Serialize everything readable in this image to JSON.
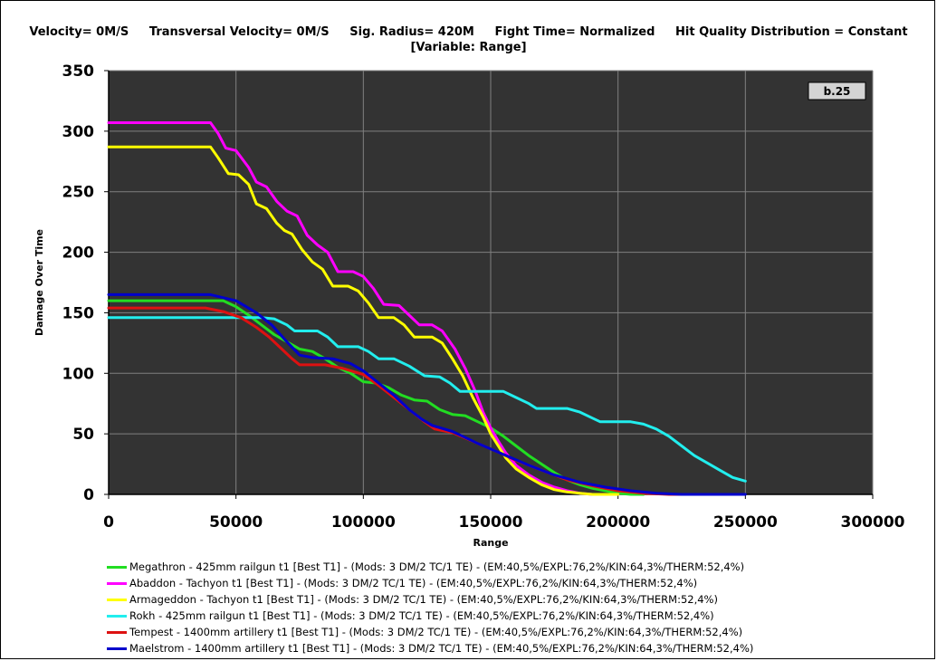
{
  "header": {
    "line1": "Velocity= 0M/S     Transversal Velocity= 0M/S     Sig. Radius= 420M     Fight Time= Normalized     Hit Quality Distribution = Constant",
    "line2": "[Variable: Range]"
  },
  "colors": {
    "plot_background": "#333333",
    "grid": "#808080",
    "badge_background": "#d4d4d4"
  },
  "chart_data": {
    "type": "line",
    "xlabel": "Range",
    "ylabel": "Damage Over Time",
    "xlim": [
      0,
      300000
    ],
    "ylim": [
      0,
      350
    ],
    "xticks": [
      0,
      50000,
      100000,
      150000,
      200000,
      250000,
      300000
    ],
    "xtick_labels": [
      "0",
      "50000",
      "100000",
      "150000",
      "200000",
      "250000",
      "300000"
    ],
    "yticks": [
      0,
      50,
      100,
      150,
      200,
      250,
      300,
      350
    ],
    "ytick_labels": [
      "0",
      "50",
      "100",
      "150",
      "200",
      "250",
      "300",
      "350"
    ],
    "grid": true,
    "legend_position": "bottom",
    "annotation": "b.25",
    "series": [
      {
        "name": "Megathron - 425mm railgun t1 [Best T1] - (Mods: 3 DM/2 TC/1 TE) - (EM:40,5%/EXPL:76,2%/KIN:64,3%/THERM:52,4%)",
        "color": "#22dd22",
        "points": [
          [
            0,
            160
          ],
          [
            45000,
            160
          ],
          [
            50000,
            155
          ],
          [
            55000,
            148
          ],
          [
            60000,
            140
          ],
          [
            65000,
            132
          ],
          [
            70000,
            126
          ],
          [
            75000,
            120
          ],
          [
            80000,
            118
          ],
          [
            85000,
            112
          ],
          [
            90000,
            105
          ],
          [
            95000,
            100
          ],
          [
            100000,
            93
          ],
          [
            105000,
            92
          ],
          [
            110000,
            88
          ],
          [
            115000,
            82
          ],
          [
            120000,
            78
          ],
          [
            125000,
            77
          ],
          [
            130000,
            70
          ],
          [
            135000,
            66
          ],
          [
            140000,
            65
          ],
          [
            145000,
            60
          ],
          [
            150000,
            55
          ],
          [
            155000,
            48
          ],
          [
            160000,
            40
          ],
          [
            165000,
            32
          ],
          [
            170000,
            25
          ],
          [
            175000,
            18
          ],
          [
            180000,
            12
          ],
          [
            185000,
            8
          ],
          [
            190000,
            5
          ],
          [
            195000,
            3
          ],
          [
            200000,
            1
          ],
          [
            205000,
            0
          ],
          [
            210000,
            0
          ]
        ]
      },
      {
        "name": "Abaddon - Tachyon t1 [Best T1] - (Mods: 3 DM/2 TC/1 TE) - (EM:40,5%/EXPL:76,2%/KIN:64,3%/THERM:52,4%)",
        "color": "#ff00ff",
        "points": [
          [
            0,
            307
          ],
          [
            40000,
            307
          ],
          [
            43000,
            298
          ],
          [
            46000,
            286
          ],
          [
            50000,
            284
          ],
          [
            55000,
            270
          ],
          [
            58000,
            258
          ],
          [
            62000,
            254
          ],
          [
            66000,
            242
          ],
          [
            70000,
            234
          ],
          [
            74000,
            230
          ],
          [
            78000,
            214
          ],
          [
            82000,
            206
          ],
          [
            86000,
            200
          ],
          [
            90000,
            184
          ],
          [
            96000,
            184
          ],
          [
            100000,
            180
          ],
          [
            104000,
            170
          ],
          [
            108000,
            157
          ],
          [
            114000,
            156
          ],
          [
            118000,
            148
          ],
          [
            122000,
            140
          ],
          [
            127000,
            140
          ],
          [
            131000,
            135
          ],
          [
            136000,
            120
          ],
          [
            140000,
            104
          ],
          [
            144000,
            85
          ],
          [
            147000,
            68
          ],
          [
            150000,
            55
          ],
          [
            153000,
            44
          ],
          [
            156000,
            34
          ],
          [
            160000,
            24
          ],
          [
            165000,
            16
          ],
          [
            170000,
            10
          ],
          [
            175000,
            6
          ],
          [
            180000,
            3
          ],
          [
            185000,
            1
          ],
          [
            190000,
            0
          ],
          [
            200000,
            0
          ]
        ]
      },
      {
        "name": "Armageddon - Tachyon t1 [Best T1] - (Mods: 3 DM/2 TC/1 TE) - (EM:40,5%/EXPL:76,2%/KIN:64,3%/THERM:52,4%)",
        "color": "#ffff00",
        "points": [
          [
            0,
            287
          ],
          [
            40000,
            287
          ],
          [
            43000,
            278
          ],
          [
            47000,
            265
          ],
          [
            51000,
            264
          ],
          [
            55000,
            256
          ],
          [
            58000,
            240
          ],
          [
            62000,
            236
          ],
          [
            66000,
            224
          ],
          [
            69000,
            218
          ],
          [
            72000,
            215
          ],
          [
            76000,
            202
          ],
          [
            80000,
            192
          ],
          [
            84000,
            186
          ],
          [
            88000,
            172
          ],
          [
            94000,
            172
          ],
          [
            98000,
            168
          ],
          [
            102000,
            158
          ],
          [
            106000,
            146
          ],
          [
            112000,
            146
          ],
          [
            116000,
            140
          ],
          [
            120000,
            130
          ],
          [
            127000,
            130
          ],
          [
            131000,
            125
          ],
          [
            135000,
            112
          ],
          [
            139000,
            98
          ],
          [
            143000,
            80
          ],
          [
            147000,
            64
          ],
          [
            150000,
            50
          ],
          [
            153000,
            40
          ],
          [
            156000,
            30
          ],
          [
            160000,
            21
          ],
          [
            165000,
            14
          ],
          [
            170000,
            8
          ],
          [
            175000,
            4
          ],
          [
            180000,
            2
          ],
          [
            185000,
            1
          ],
          [
            190000,
            0
          ],
          [
            200000,
            0
          ]
        ]
      },
      {
        "name": "Rokh - 425mm railgun t1 [Best T1] - (Mods: 3 DM/2 TC/1 TE) - (EM:40,5%/EXPL:76,2%/KIN:64,3%/THERM:52,4%)",
        "color": "#22eeee",
        "points": [
          [
            0,
            146
          ],
          [
            60000,
            146
          ],
          [
            65000,
            145
          ],
          [
            70000,
            140
          ],
          [
            73000,
            135
          ],
          [
            82000,
            135
          ],
          [
            86000,
            130
          ],
          [
            90000,
            122
          ],
          [
            98000,
            122
          ],
          [
            102000,
            118
          ],
          [
            106000,
            112
          ],
          [
            112000,
            112
          ],
          [
            118000,
            106
          ],
          [
            124000,
            98
          ],
          [
            130000,
            97
          ],
          [
            134000,
            92
          ],
          [
            138000,
            85
          ],
          [
            155000,
            85
          ],
          [
            160000,
            80
          ],
          [
            165000,
            75
          ],
          [
            168000,
            71
          ],
          [
            180000,
            71
          ],
          [
            185000,
            68
          ],
          [
            190000,
            63
          ],
          [
            193000,
            60
          ],
          [
            205000,
            60
          ],
          [
            210000,
            58
          ],
          [
            215000,
            54
          ],
          [
            220000,
            48
          ],
          [
            225000,
            40
          ],
          [
            230000,
            32
          ],
          [
            235000,
            26
          ],
          [
            240000,
            20
          ],
          [
            245000,
            14
          ],
          [
            250000,
            11
          ]
        ]
      },
      {
        "name": "Tempest - 1400mm artillery t1 [Best T1] - (Mods: 3 DM/2 TC/1 TE) - (EM:40,5%/EXPL:76,2%/KIN:64,3%/THERM:52,4%)",
        "color": "#dd1111",
        "points": [
          [
            0,
            154
          ],
          [
            38000,
            154
          ],
          [
            45000,
            151
          ],
          [
            52000,
            146
          ],
          [
            58000,
            138
          ],
          [
            63000,
            130
          ],
          [
            68000,
            120
          ],
          [
            72000,
            112
          ],
          [
            75000,
            107
          ],
          [
            85000,
            107
          ],
          [
            92000,
            104
          ],
          [
            100000,
            99
          ],
          [
            106000,
            90
          ],
          [
            112000,
            80
          ],
          [
            118000,
            70
          ],
          [
            124000,
            60
          ],
          [
            128000,
            54
          ],
          [
            135000,
            51
          ],
          [
            145000,
            42
          ],
          [
            155000,
            33
          ],
          [
            160000,
            28
          ],
          [
            170000,
            20
          ],
          [
            180000,
            12
          ],
          [
            190000,
            7
          ],
          [
            200000,
            3
          ],
          [
            210000,
            1
          ],
          [
            220000,
            0
          ],
          [
            230000,
            0
          ]
        ]
      },
      {
        "name": "Maelstrom - 1400mm artillery t1 [Best T1] - (Mods: 3 DM/2 TC/1 TE) - (EM:40,5%/EXPL:76,2%/KIN:64,3%/THERM:52,4%)",
        "color": "#0000cc",
        "points": [
          [
            0,
            165
          ],
          [
            40000,
            165
          ],
          [
            50000,
            160
          ],
          [
            58000,
            150
          ],
          [
            64000,
            140
          ],
          [
            70000,
            126
          ],
          [
            75000,
            115
          ],
          [
            80000,
            113
          ],
          [
            88000,
            112
          ],
          [
            95000,
            108
          ],
          [
            100000,
            102
          ],
          [
            106000,
            92
          ],
          [
            112000,
            82
          ],
          [
            118000,
            70
          ],
          [
            123000,
            62
          ],
          [
            127000,
            57
          ],
          [
            135000,
            52
          ],
          [
            145000,
            42
          ],
          [
            155000,
            33
          ],
          [
            165000,
            24
          ],
          [
            175000,
            16
          ],
          [
            185000,
            10
          ],
          [
            195000,
            6
          ],
          [
            205000,
            3
          ],
          [
            215000,
            1
          ],
          [
            225000,
            0
          ],
          [
            250000,
            0
          ]
        ]
      }
    ]
  }
}
